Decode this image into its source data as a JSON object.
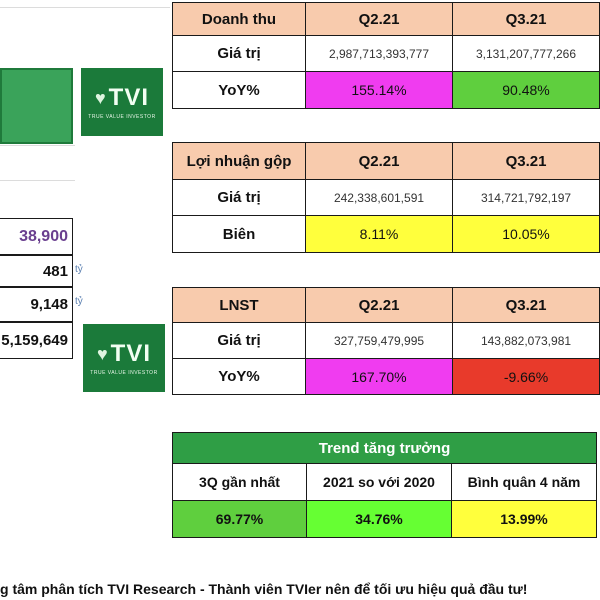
{
  "left_panel": {
    "price": "38,900",
    "row1_value": "481",
    "row1_unit": "tỷ",
    "row2_value": "9,148",
    "row2_unit": "tỷ",
    "row3_value": "5,159,649"
  },
  "logo": {
    "text": "TVI",
    "tagline": "TRUE VALUE INVESTOR"
  },
  "revenue_table": {
    "header": [
      "Doanh thu",
      "Q2.21",
      "Q3.21"
    ],
    "rows": [
      {
        "label": "Giá trị",
        "values": [
          "2,987,713,393,777",
          "3,131,207,777,266"
        ]
      },
      {
        "label": "YoY%",
        "values": [
          "155.14%",
          "90.48%"
        ]
      }
    ]
  },
  "gross_profit_table": {
    "header": [
      "Lợi nhuận gộp",
      "Q2.21",
      "Q3.21"
    ],
    "rows": [
      {
        "label": "Giá trị",
        "values": [
          "242,338,601,591",
          "314,721,792,197"
        ]
      },
      {
        "label": "Biên",
        "values": [
          "8.11%",
          "10.05%"
        ]
      }
    ]
  },
  "net_profit_table": {
    "header": [
      "LNST",
      "Q2.21",
      "Q3.21"
    ],
    "rows": [
      {
        "label": "Giá trị",
        "values": [
          "327,759,479,995",
          "143,882,073,981"
        ]
      },
      {
        "label": "YoY%",
        "values": [
          "167.70%",
          "-9.66%"
        ]
      }
    ]
  },
  "trend_table": {
    "title": "Trend tăng trưởng",
    "columns": [
      "3Q gần nhất",
      "2021 so với 2020",
      "Bình quân 4 năm"
    ],
    "values": [
      "69.77%",
      "34.76%",
      "13.99%"
    ]
  },
  "footer_text": "g tâm phân tích TVI Research - Thành viên TVIer nên để tối ưu hiệu quả đầu tư!",
  "colors": {
    "header_peach": "#f8cbad",
    "magenta": "#f03cf0",
    "green": "#5fcf3e",
    "yellow": "#ffff3c",
    "red": "#e83a2b",
    "trend_title_bg": "#2f9e45"
  }
}
